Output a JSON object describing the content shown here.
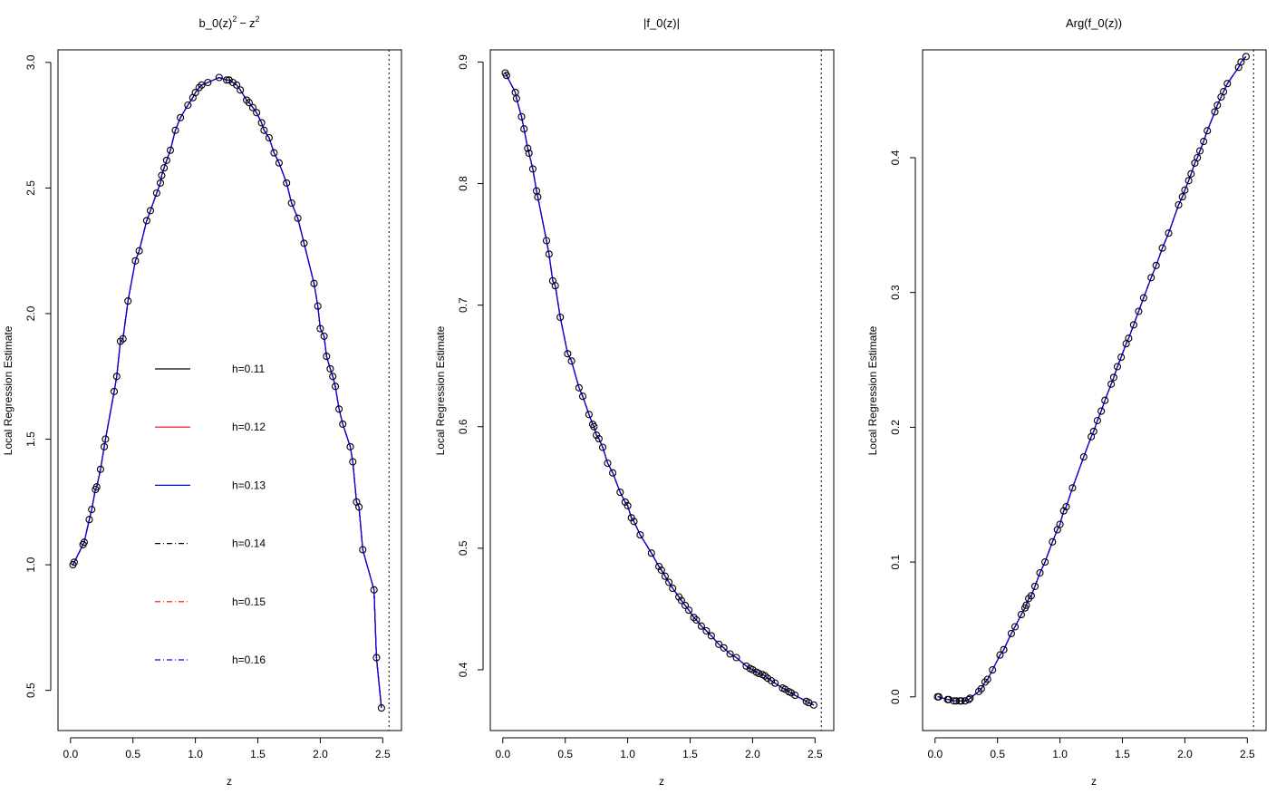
{
  "chart_data": [
    {
      "type": "line",
      "title": "b_0(z)^2 - z^2",
      "title_parts": {
        "b": "b_0(z)",
        "sup": "2",
        "minus": "−",
        "z": "z"
      },
      "xlabel": "z",
      "ylabel": "Local Regression Estimate",
      "xlim": [
        -0.1,
        2.65
      ],
      "ylim": [
        0.34,
        3.05
      ],
      "xticks": [
        0.0,
        0.5,
        1.0,
        1.5,
        2.0,
        2.5
      ],
      "xtick_labels": [
        "0.0",
        "0.5",
        "1.0",
        "1.5",
        "2.0",
        "2.5"
      ],
      "yticks": [
        0.5,
        1.0,
        1.5,
        2.0,
        2.5,
        3.0
      ],
      "ytick_labels": [
        "0.5",
        "1.0",
        "1.5",
        "2.0",
        "2.5",
        "3.0"
      ],
      "vline_x": 2.55,
      "grid": false,
      "legend": {
        "placement": "center-left",
        "entries": [
          {
            "label": "h=0.11",
            "color": "#000000",
            "dash": "solid"
          },
          {
            "label": "h=0.12",
            "color": "#ff0000",
            "dash": "solid"
          },
          {
            "label": "h=0.13",
            "color": "#0000ff",
            "dash": "solid"
          },
          {
            "label": "h=0.14",
            "color": "#000000",
            "dash": "dashdot"
          },
          {
            "label": "h=0.15",
            "color": "#ff0000",
            "dash": "dashdot"
          },
          {
            "label": "h=0.16",
            "color": "#0000ff",
            "dash": "dashdot"
          }
        ]
      },
      "series": [
        {
          "name": "h=0.11",
          "color": "#000000"
        },
        {
          "name": "h=0.12",
          "color": "#ff0000"
        },
        {
          "name": "h=0.13",
          "color": "#0000ff"
        },
        {
          "name": "h=0.14",
          "color": "#000000"
        },
        {
          "name": "h=0.15",
          "color": "#ff0000"
        },
        {
          "name": "h=0.16",
          "color": "#0000ff"
        }
      ],
      "points": {
        "x": [
          0.02,
          0.03,
          0.1,
          0.11,
          0.15,
          0.17,
          0.2,
          0.21,
          0.24,
          0.27,
          0.28,
          0.35,
          0.37,
          0.4,
          0.42,
          0.46,
          0.52,
          0.55,
          0.61,
          0.64,
          0.69,
          0.72,
          0.73,
          0.75,
          0.77,
          0.8,
          0.84,
          0.88,
          0.94,
          0.98,
          1.0,
          1.03,
          1.05,
          1.1,
          1.19,
          1.25,
          1.27,
          1.3,
          1.33,
          1.36,
          1.41,
          1.43,
          1.46,
          1.49,
          1.53,
          1.55,
          1.59,
          1.63,
          1.67,
          1.73,
          1.77,
          1.82,
          1.87,
          1.95,
          1.98,
          2.0,
          2.03,
          2.05,
          2.08,
          2.1,
          2.12,
          2.15,
          2.18,
          2.24,
          2.26,
          2.29,
          2.31,
          2.34,
          2.43,
          2.45,
          2.49
        ],
        "y": [
          1.0,
          1.01,
          1.08,
          1.09,
          1.18,
          1.22,
          1.3,
          1.31,
          1.38,
          1.47,
          1.5,
          1.69,
          1.75,
          1.89,
          1.9,
          2.05,
          2.21,
          2.25,
          2.37,
          2.41,
          2.48,
          2.52,
          2.55,
          2.58,
          2.61,
          2.65,
          2.73,
          2.78,
          2.83,
          2.86,
          2.88,
          2.9,
          2.91,
          2.92,
          2.94,
          2.93,
          2.93,
          2.92,
          2.91,
          2.89,
          2.85,
          2.84,
          2.82,
          2.8,
          2.76,
          2.73,
          2.7,
          2.64,
          2.6,
          2.52,
          2.44,
          2.38,
          2.28,
          2.12,
          2.03,
          1.94,
          1.91,
          1.83,
          1.78,
          1.75,
          1.71,
          1.62,
          1.56,
          1.47,
          1.41,
          1.25,
          1.23,
          1.06,
          0.9,
          0.63,
          0.43
        ]
      }
    },
    {
      "type": "line",
      "title": "|f_0(z)|",
      "xlabel": "z",
      "ylabel": "Local Regression Estimate",
      "xlim": [
        -0.1,
        2.65
      ],
      "ylim": [
        0.35,
        0.91
      ],
      "xticks": [
        0.0,
        0.5,
        1.0,
        1.5,
        2.0,
        2.5
      ],
      "xtick_labels": [
        "0.0",
        "0.5",
        "1.0",
        "1.5",
        "2.0",
        "2.5"
      ],
      "yticks": [
        0.4,
        0.5,
        0.6,
        0.7,
        0.8,
        0.9
      ],
      "ytick_labels": [
        "0.4",
        "0.5",
        "0.6",
        "0.7",
        "0.8",
        "0.9"
      ],
      "vline_x": 2.55,
      "grid": false,
      "series": [
        {
          "name": "h=0.11",
          "color": "#000000"
        },
        {
          "name": "h=0.12",
          "color": "#ff0000"
        },
        {
          "name": "h=0.13",
          "color": "#0000ff"
        },
        {
          "name": "h=0.14",
          "color": "#000000"
        },
        {
          "name": "h=0.15",
          "color": "#ff0000"
        },
        {
          "name": "h=0.16",
          "color": "#0000ff"
        }
      ],
      "points": {
        "x": [
          0.02,
          0.03,
          0.1,
          0.11,
          0.15,
          0.17,
          0.2,
          0.21,
          0.24,
          0.27,
          0.28,
          0.35,
          0.37,
          0.4,
          0.42,
          0.46,
          0.52,
          0.55,
          0.61,
          0.64,
          0.69,
          0.72,
          0.73,
          0.75,
          0.77,
          0.8,
          0.84,
          0.88,
          0.94,
          0.98,
          1.0,
          1.03,
          1.05,
          1.1,
          1.19,
          1.25,
          1.27,
          1.3,
          1.33,
          1.36,
          1.41,
          1.43,
          1.46,
          1.49,
          1.53,
          1.55,
          1.59,
          1.63,
          1.67,
          1.73,
          1.77,
          1.82,
          1.87,
          1.95,
          1.98,
          2.0,
          2.03,
          2.05,
          2.08,
          2.1,
          2.12,
          2.15,
          2.18,
          2.24,
          2.26,
          2.29,
          2.31,
          2.34,
          2.43,
          2.45,
          2.49
        ],
        "y": [
          0.891,
          0.889,
          0.875,
          0.87,
          0.855,
          0.845,
          0.829,
          0.825,
          0.812,
          0.794,
          0.789,
          0.753,
          0.742,
          0.72,
          0.716,
          0.69,
          0.66,
          0.654,
          0.632,
          0.625,
          0.61,
          0.602,
          0.6,
          0.593,
          0.59,
          0.583,
          0.57,
          0.562,
          0.546,
          0.538,
          0.535,
          0.525,
          0.522,
          0.511,
          0.496,
          0.485,
          0.482,
          0.477,
          0.472,
          0.467,
          0.46,
          0.457,
          0.453,
          0.449,
          0.443,
          0.441,
          0.436,
          0.432,
          0.428,
          0.421,
          0.418,
          0.413,
          0.41,
          0.403,
          0.401,
          0.4,
          0.398,
          0.397,
          0.396,
          0.395,
          0.393,
          0.391,
          0.389,
          0.385,
          0.384,
          0.382,
          0.381,
          0.379,
          0.374,
          0.373,
          0.371
        ]
      }
    },
    {
      "type": "line",
      "title": "Arg(f_0(z))",
      "xlabel": "z",
      "ylabel": "Local Regression Estimate",
      "xlim": [
        -0.1,
        2.65
      ],
      "ylim": [
        -0.025,
        0.48
      ],
      "xticks": [
        0.0,
        0.5,
        1.0,
        1.5,
        2.0,
        2.5
      ],
      "xtick_labels": [
        "0.0",
        "0.5",
        "1.0",
        "1.5",
        "2.0",
        "2.5"
      ],
      "yticks": [
        0.0,
        0.1,
        0.2,
        0.3,
        0.4
      ],
      "ytick_labels": [
        "0.0",
        "0.1",
        "0.2",
        "0.3",
        "0.4"
      ],
      "vline_x": 2.55,
      "grid": false,
      "series": [
        {
          "name": "h=0.11",
          "color": "#000000"
        },
        {
          "name": "h=0.12",
          "color": "#ff0000"
        },
        {
          "name": "h=0.13",
          "color": "#0000ff"
        },
        {
          "name": "h=0.14",
          "color": "#000000"
        },
        {
          "name": "h=0.15",
          "color": "#ff0000"
        },
        {
          "name": "h=0.16",
          "color": "#0000ff"
        }
      ],
      "points": {
        "x": [
          0.02,
          0.03,
          0.1,
          0.11,
          0.15,
          0.17,
          0.2,
          0.21,
          0.24,
          0.27,
          0.28,
          0.35,
          0.37,
          0.4,
          0.42,
          0.46,
          0.52,
          0.55,
          0.61,
          0.64,
          0.69,
          0.72,
          0.73,
          0.75,
          0.77,
          0.8,
          0.84,
          0.88,
          0.94,
          0.98,
          1.0,
          1.03,
          1.05,
          1.1,
          1.19,
          1.25,
          1.27,
          1.3,
          1.33,
          1.36,
          1.41,
          1.43,
          1.46,
          1.49,
          1.53,
          1.55,
          1.59,
          1.63,
          1.67,
          1.73,
          1.77,
          1.82,
          1.87,
          1.95,
          1.98,
          2.0,
          2.03,
          2.05,
          2.08,
          2.1,
          2.12,
          2.15,
          2.18,
          2.24,
          2.26,
          2.29,
          2.31,
          2.34,
          2.43,
          2.45,
          2.49
        ],
        "y": [
          0.0,
          0.0,
          -0.002,
          -0.002,
          -0.003,
          -0.003,
          -0.003,
          -0.003,
          -0.003,
          -0.002,
          -0.001,
          0.004,
          0.006,
          0.011,
          0.013,
          0.02,
          0.031,
          0.035,
          0.047,
          0.052,
          0.061,
          0.066,
          0.068,
          0.073,
          0.075,
          0.082,
          0.092,
          0.1,
          0.115,
          0.124,
          0.128,
          0.138,
          0.141,
          0.155,
          0.178,
          0.193,
          0.197,
          0.205,
          0.212,
          0.22,
          0.232,
          0.237,
          0.245,
          0.252,
          0.262,
          0.266,
          0.276,
          0.286,
          0.296,
          0.311,
          0.32,
          0.333,
          0.344,
          0.365,
          0.371,
          0.376,
          0.383,
          0.388,
          0.396,
          0.4,
          0.405,
          0.412,
          0.42,
          0.434,
          0.439,
          0.445,
          0.449,
          0.455,
          0.467,
          0.471,
          0.475
        ]
      }
    }
  ]
}
